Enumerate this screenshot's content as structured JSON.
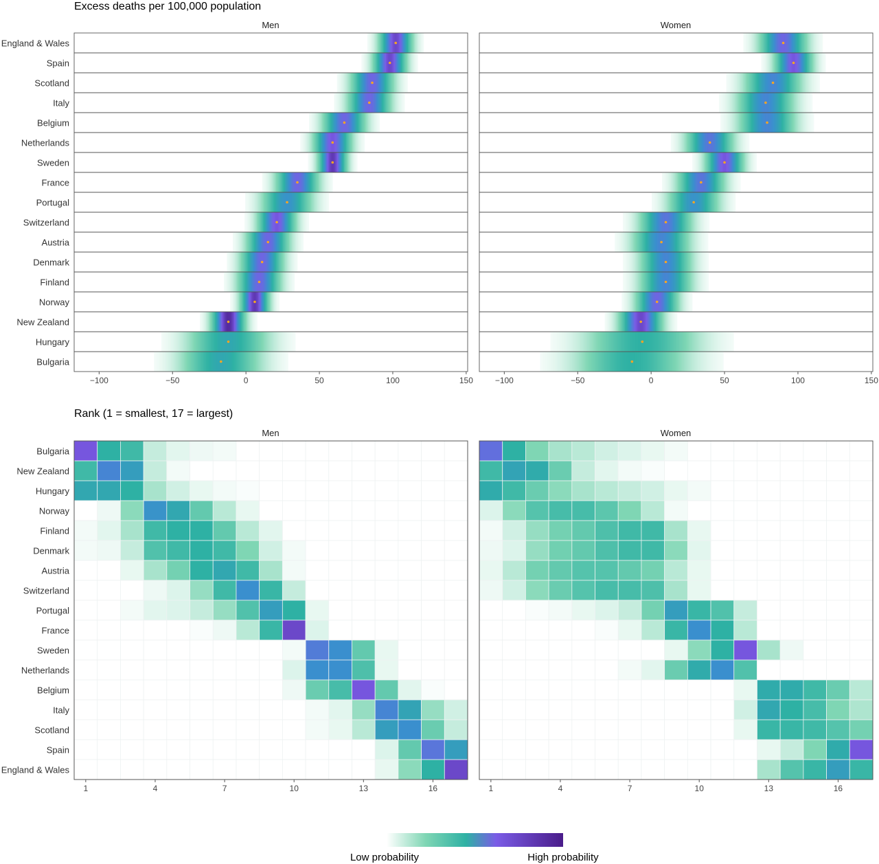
{
  "chart_data": [
    {
      "type": "heatmap",
      "title": "Excess deaths per 100,000 population",
      "facets": [
        "Men",
        "Women"
      ],
      "countries": [
        "England & Wales",
        "Spain",
        "Scotland",
        "Italy",
        "Belgium",
        "Netherlands",
        "Sweden",
        "France",
        "Portugal",
        "Switzerland",
        "Austria",
        "Denmark",
        "Finland",
        "Norway",
        "New Zealand",
        "Hungary",
        "Bulgaria"
      ],
      "x_ticks": [
        -100,
        -50,
        0,
        50,
        100,
        150
      ],
      "xlim": [
        -117,
        151
      ],
      "series": [
        {
          "name": "Men",
          "point_estimate": [
            102,
            98,
            86,
            84,
            67,
            59,
            59,
            35,
            28,
            21,
            15,
            11,
            9,
            6,
            -12,
            -12,
            -17
          ],
          "spread_sd": [
            7,
            7,
            9,
            9,
            9,
            8,
            6,
            9,
            11,
            8,
            9,
            9,
            9,
            6,
            7,
            18,
            18
          ],
          "peak_density": [
            0.85,
            0.85,
            0.75,
            0.75,
            0.75,
            0.8,
            0.9,
            0.75,
            0.6,
            0.8,
            0.75,
            0.75,
            0.75,
            0.9,
            0.95,
            0.5,
            0.5
          ]
        },
        {
          "name": "Women",
          "point_estimate": [
            90,
            97,
            83,
            78,
            79,
            40,
            50,
            34,
            29,
            10,
            7,
            10,
            10,
            4,
            -7,
            -6,
            -13
          ],
          "spread_sd": [
            10,
            8,
            12,
            12,
            12,
            10,
            8,
            10,
            11,
            11,
            12,
            11,
            11,
            9,
            9,
            25,
            25
          ],
          "peak_density": [
            0.75,
            0.8,
            0.65,
            0.65,
            0.65,
            0.7,
            0.8,
            0.7,
            0.6,
            0.7,
            0.65,
            0.65,
            0.65,
            0.75,
            0.85,
            0.45,
            0.45
          ]
        }
      ]
    },
    {
      "type": "heatmap",
      "title": "Rank (1 = smallest, 17 = largest)",
      "facets": [
        "Men",
        "Women"
      ],
      "countries": [
        "Bulgaria",
        "New Zealand",
        "Hungary",
        "Norway",
        "Finland",
        "Denmark",
        "Austria",
        "Switzerland",
        "Portugal",
        "France",
        "Sweden",
        "Netherlands",
        "Belgium",
        "Italy",
        "Scotland",
        "Spain",
        "England & Wales"
      ],
      "x_ticks": [
        1,
        4,
        7,
        10,
        13,
        16
      ],
      "ranks": [
        1,
        2,
        3,
        4,
        5,
        6,
        7,
        8,
        9,
        10,
        11,
        12,
        13,
        14,
        15,
        16,
        17
      ],
      "series": [
        {
          "name": "Men",
          "probabilities": [
            [
              0.8,
              0.45,
              0.4,
              0.1,
              0.05,
              0.03,
              0.02,
              0,
              0,
              0,
              0,
              0,
              0,
              0,
              0,
              0,
              0
            ],
            [
              0.4,
              0.65,
              0.55,
              0.1,
              0.02,
              0,
              0,
              0,
              0,
              0,
              0,
              0,
              0,
              0,
              0,
              0,
              0
            ],
            [
              0.5,
              0.5,
              0.45,
              0.15,
              0.08,
              0.04,
              0.02,
              0.01,
              0,
              0,
              0,
              0,
              0,
              0,
              0,
              0,
              0
            ],
            [
              0,
              0.03,
              0.2,
              0.6,
              0.5,
              0.3,
              0.12,
              0.04,
              0,
              0,
              0,
              0,
              0,
              0,
              0,
              0,
              0
            ],
            [
              0.02,
              0.05,
              0.15,
              0.4,
              0.45,
              0.45,
              0.3,
              0.12,
              0.05,
              0,
              0,
              0,
              0,
              0,
              0,
              0,
              0
            ],
            [
              0.02,
              0.03,
              0.1,
              0.35,
              0.4,
              0.45,
              0.4,
              0.22,
              0.08,
              0.02,
              0,
              0,
              0,
              0,
              0,
              0,
              0
            ],
            [
              0,
              0,
              0.04,
              0.15,
              0.25,
              0.45,
              0.5,
              0.4,
              0.15,
              0.02,
              0,
              0,
              0,
              0,
              0,
              0,
              0
            ],
            [
              0,
              0,
              0,
              0.03,
              0.06,
              0.18,
              0.4,
              0.62,
              0.42,
              0.1,
              0,
              0,
              0,
              0,
              0,
              0,
              0
            ],
            [
              0,
              0,
              0.02,
              0.05,
              0.06,
              0.1,
              0.18,
              0.35,
              0.55,
              0.45,
              0.04,
              0,
              0,
              0,
              0,
              0,
              0
            ],
            [
              0,
              0,
              0,
              0,
              0,
              0.01,
              0.03,
              0.12,
              0.42,
              0.85,
              0.06,
              0,
              0,
              0,
              0,
              0,
              0
            ],
            [
              0,
              0,
              0,
              0,
              0,
              0,
              0,
              0,
              0,
              0.02,
              0.68,
              0.62,
              0.3,
              0.04,
              0,
              0,
              0
            ],
            [
              0,
              0,
              0,
              0,
              0,
              0,
              0,
              0,
              0,
              0.06,
              0.62,
              0.62,
              0.36,
              0.04,
              0,
              0,
              0
            ],
            [
              0,
              0,
              0,
              0,
              0,
              0,
              0,
              0,
              0,
              0.03,
              0.28,
              0.38,
              0.8,
              0.3,
              0.05,
              0.01,
              0
            ],
            [
              0,
              0,
              0,
              0,
              0,
              0,
              0,
              0,
              0,
              0,
              0.02,
              0.05,
              0.18,
              0.65,
              0.52,
              0.18,
              0.08
            ],
            [
              0,
              0,
              0,
              0,
              0,
              0,
              0,
              0,
              0,
              0,
              0.02,
              0.04,
              0.12,
              0.55,
              0.62,
              0.28,
              0.1
            ],
            [
              0,
              0,
              0,
              0,
              0,
              0,
              0,
              0,
              0,
              0,
              0,
              0,
              0,
              0.06,
              0.3,
              0.7,
              0.55
            ],
            [
              0,
              0,
              0,
              0,
              0,
              0,
              0,
              0,
              0,
              0,
              0,
              0,
              0,
              0.04,
              0.2,
              0.45,
              0.85
            ]
          ]
        },
        {
          "name": "Women",
          "probabilities": [
            [
              0.72,
              0.45,
              0.22,
              0.15,
              0.12,
              0.08,
              0.06,
              0.04,
              0.02,
              0,
              0,
              0,
              0,
              0,
              0,
              0,
              0
            ],
            [
              0.4,
              0.52,
              0.48,
              0.28,
              0.1,
              0.05,
              0.02,
              0.01,
              0,
              0,
              0,
              0,
              0,
              0,
              0,
              0,
              0
            ],
            [
              0.48,
              0.4,
              0.28,
              0.2,
              0.15,
              0.12,
              0.1,
              0.08,
              0.04,
              0.02,
              0,
              0,
              0,
              0,
              0,
              0,
              0
            ],
            [
              0.06,
              0.2,
              0.34,
              0.38,
              0.38,
              0.32,
              0.22,
              0.12,
              0.02,
              0,
              0,
              0,
              0,
              0,
              0,
              0,
              0
            ],
            [
              0.02,
              0.08,
              0.18,
              0.25,
              0.3,
              0.36,
              0.4,
              0.4,
              0.15,
              0.04,
              0,
              0,
              0,
              0,
              0,
              0,
              0
            ],
            [
              0.03,
              0.06,
              0.18,
              0.26,
              0.3,
              0.36,
              0.4,
              0.4,
              0.2,
              0.05,
              0,
              0,
              0,
              0,
              0,
              0,
              0
            ],
            [
              0.04,
              0.12,
              0.25,
              0.3,
              0.34,
              0.34,
              0.3,
              0.25,
              0.12,
              0.04,
              0,
              0,
              0,
              0,
              0,
              0,
              0
            ],
            [
              0.03,
              0.08,
              0.2,
              0.28,
              0.34,
              0.38,
              0.38,
              0.36,
              0.15,
              0.04,
              0,
              0,
              0,
              0,
              0,
              0,
              0
            ],
            [
              0,
              0,
              0.01,
              0.02,
              0.04,
              0.06,
              0.1,
              0.25,
              0.55,
              0.42,
              0.35,
              0.1,
              0,
              0,
              0,
              0,
              0
            ],
            [
              0,
              0,
              0,
              0,
              0,
              0.01,
              0.04,
              0.12,
              0.42,
              0.62,
              0.45,
              0.12,
              0,
              0,
              0,
              0,
              0
            ],
            [
              0,
              0,
              0,
              0,
              0,
              0,
              0,
              0,
              0.04,
              0.2,
              0.45,
              0.8,
              0.15,
              0.03,
              0,
              0,
              0
            ],
            [
              0,
              0,
              0,
              0,
              0,
              0,
              0.02,
              0.05,
              0.28,
              0.48,
              0.62,
              0.35,
              0,
              0,
              0,
              0,
              0
            ],
            [
              0,
              0,
              0,
              0,
              0,
              0,
              0,
              0,
              0,
              0,
              0,
              0.04,
              0.48,
              0.48,
              0.4,
              0.28,
              0.12
            ],
            [
              0,
              0,
              0,
              0,
              0,
              0,
              0,
              0,
              0,
              0,
              0,
              0.08,
              0.5,
              0.45,
              0.38,
              0.22,
              0.14
            ],
            [
              0,
              0,
              0,
              0,
              0,
              0,
              0,
              0,
              0,
              0,
              0,
              0.04,
              0.42,
              0.42,
              0.4,
              0.34,
              0.25
            ],
            [
              0,
              0,
              0,
              0,
              0,
              0,
              0,
              0,
              0,
              0,
              0,
              0,
              0.04,
              0.1,
              0.22,
              0.48,
              0.8
            ],
            [
              0,
              0,
              0,
              0,
              0,
              0,
              0,
              0,
              0,
              0,
              0,
              0,
              0.15,
              0.34,
              0.42,
              0.55,
              0.42
            ]
          ]
        }
      ]
    }
  ],
  "legend": {
    "low_label": "Low probability",
    "high_label": "High probability",
    "colors": [
      "#ffffff",
      "#7fd6b4",
      "#2eb1a4",
      "#3a8fce",
      "#7a5ce6",
      "#4a1c8a"
    ]
  },
  "point_color": "#f5a623"
}
